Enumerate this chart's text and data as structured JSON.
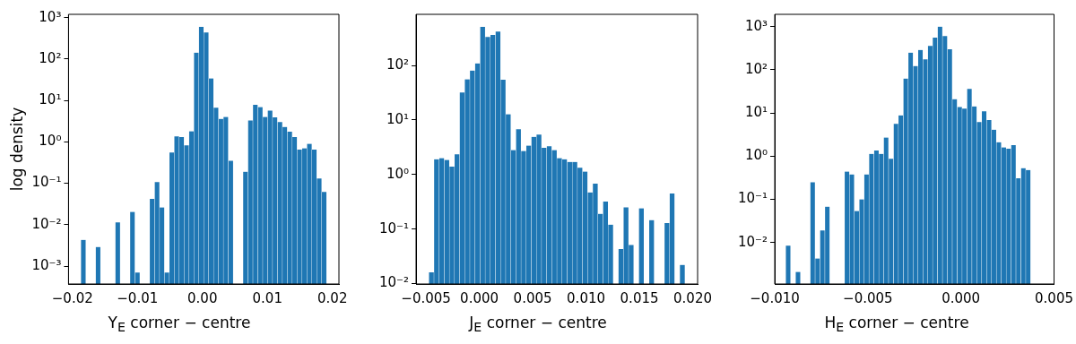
{
  "chart_data": [
    {
      "type": "histogram",
      "log": true,
      "color": "#1f77b4",
      "xlabel": "Y$_{E}$ corner − centre",
      "ylabel": "log density",
      "bins": [
        -0.0187,
        -0.01794,
        -0.01719,
        -0.01643,
        -0.01568,
        -0.01492,
        -0.01416,
        -0.01341,
        -0.01265,
        -0.0119,
        -0.01114,
        -0.01038,
        -0.00963,
        -0.00887,
        -0.00812,
        -0.00736,
        -0.0066,
        -0.00585,
        -0.00509,
        -0.00434,
        -0.00358,
        -0.00282,
        -0.00207,
        -0.00131,
        -0.00056,
        0.0002,
        0.00096,
        0.00171,
        0.00247,
        0.00322,
        0.00398,
        0.00474,
        0.00549,
        0.00625,
        0.007,
        0.00776,
        0.00852,
        0.00927,
        0.01003,
        0.01078,
        0.01154,
        0.0123,
        0.01305,
        0.01381,
        0.01456,
        0.01532,
        0.01608,
        0.01683,
        0.01759,
        0.01834,
        0.0191
      ],
      "values": [
        0.0043,
        null,
        null,
        0.0029,
        null,
        null,
        null,
        0.0113,
        null,
        null,
        0.0204,
        0.0007,
        null,
        null,
        0.042,
        0.107,
        0.026,
        0.0007,
        0.55,
        1.35,
        1.3,
        0.82,
        1.8,
        143,
        600,
        440,
        34,
        6.7,
        3.6,
        4.0,
        0.35,
        null,
        null,
        0.19,
        3.3,
        7.8,
        6.9,
        4.0,
        5.7,
        3.9,
        3.0,
        2.3,
        1.75,
        1.3,
        0.65,
        0.7,
        0.9,
        0.65,
        0.13,
        0.062
      ],
      "xlim": [
        -0.0206,
        0.021
      ],
      "ylim": [
        0.00037,
        1200
      ],
      "xticks": [
        {
          "value": -0.02,
          "label": "−0.02"
        },
        {
          "value": -0.01,
          "label": "−0.01"
        },
        {
          "value": 0,
          "label": "0.00"
        },
        {
          "value": 0.01,
          "label": "0.01"
        },
        {
          "value": 0.02,
          "label": "0.02"
        }
      ],
      "yticks": [
        {
          "value": 0.001,
          "label": "10⁻³"
        },
        {
          "value": 0.01,
          "label": "10⁻²"
        },
        {
          "value": 0.1,
          "label": "10⁻¹"
        },
        {
          "value": 1,
          "label": "10⁰"
        },
        {
          "value": 10,
          "label": "10¹"
        },
        {
          "value": 100,
          "label": "10²"
        },
        {
          "value": 1000,
          "label": "10³"
        }
      ]
    },
    {
      "type": "histogram",
      "log": true,
      "color": "#1f77b4",
      "xlabel": "J$_{E}$ corner − centre",
      "bins": [
        -0.00473,
        -0.00425,
        -0.00377,
        -0.00329,
        -0.00281,
        -0.00233,
        -0.00185,
        -0.00137,
        -0.00089,
        -0.00041,
        7e-05,
        0.00055,
        0.00103,
        0.00151,
        0.00199,
        0.00247,
        0.00295,
        0.00343,
        0.00391,
        0.00439,
        0.00487,
        0.00535,
        0.00583,
        0.00631,
        0.00679,
        0.00727,
        0.00775,
        0.00823,
        0.00871,
        0.00919,
        0.00967,
        0.01015,
        0.01063,
        0.01111,
        0.01159,
        0.01207,
        0.01255,
        0.01303,
        0.01351,
        0.01399,
        0.01447,
        0.01495,
        0.01543,
        0.01591,
        0.01639,
        0.01687,
        0.01735,
        0.01783,
        0.01831,
        0.01879,
        0.01927
      ],
      "values": [
        0.016,
        1.9,
        2.0,
        1.85,
        1.4,
        2.35,
        32,
        56,
        81,
        109,
        510,
        335,
        365,
        420,
        55,
        12.8,
        2.8,
        6.8,
        2.7,
        3.4,
        4.9,
        5.4,
        3.1,
        3.3,
        2.8,
        2.0,
        1.9,
        1.7,
        1.7,
        1.33,
        1.13,
        0.47,
        0.68,
        0.19,
        0.32,
        0.12,
        null,
        0.043,
        0.25,
        0.051,
        null,
        0.24,
        null,
        0.146,
        null,
        null,
        0.128,
        0.45,
        null,
        0.022
      ],
      "xlim": [
        -0.00593,
        0.02046
      ],
      "ylim": [
        0.0098,
        870
      ],
      "xticks": [
        {
          "value": -0.005,
          "label": "−0.005"
        },
        {
          "value": 0,
          "label": "0.000"
        },
        {
          "value": 0.005,
          "label": "0.005"
        },
        {
          "value": 0.01,
          "label": "0.010"
        },
        {
          "value": 0.015,
          "label": "0.015"
        },
        {
          "value": 0.02,
          "label": "0.020"
        }
      ],
      "yticks": [
        {
          "value": 0.01,
          "label": "10⁻²"
        },
        {
          "value": 0.1,
          "label": "10⁻¹"
        },
        {
          "value": 1,
          "label": "10⁰"
        },
        {
          "value": 10,
          "label": "10¹"
        },
        {
          "value": 100,
          "label": "10²"
        }
      ]
    },
    {
      "type": "histogram",
      "log": true,
      "color": "#1f77b4",
      "xlabel": "H$_{E}$ corner − centre",
      "bins": [
        -0.00941,
        -0.00915,
        -0.00888,
        -0.00862,
        -0.00836,
        -0.0081,
        -0.00783,
        -0.00757,
        -0.00731,
        -0.00704,
        -0.00678,
        -0.00652,
        -0.00625,
        -0.00599,
        -0.00573,
        -0.00546,
        -0.0052,
        -0.00494,
        -0.00467,
        -0.00441,
        -0.00415,
        -0.00389,
        -0.00362,
        -0.00336,
        -0.0031,
        -0.00283,
        -0.00257,
        -0.00231,
        -0.00204,
        -0.00178,
        -0.00152,
        -0.00126,
        -0.00099,
        -0.00073,
        -0.00047,
        -0.0002,
        6e-05,
        0.00032,
        0.00059,
        0.00085,
        0.00111,
        0.00138,
        0.00164,
        0.0019,
        0.00217,
        0.00243,
        0.00269,
        0.00295,
        0.00322,
        0.00348,
        0.00374
      ],
      "values": [
        0.0085,
        null,
        0.0021,
        null,
        null,
        0.25,
        0.0043,
        0.019,
        0.068,
        null,
        null,
        null,
        0.44,
        0.38,
        0.054,
        0.1,
        0.38,
        1.13,
        1.35,
        1.13,
        2.7,
        0.87,
        5.6,
        8.8,
        63,
        250,
        123,
        288,
        175,
        360,
        555,
        1000,
        605,
        300,
        21,
        13.8,
        12.7,
        36,
        14.2,
        6.2,
        10.9,
        6.9,
        4.1,
        2.1,
        1.6,
        1.5,
        1.8,
        0.31,
        0.53,
        0.48
      ],
      "xlim": [
        -0.01,
        0.005
      ],
      "ylim": [
        0.0011,
        1930
      ],
      "xticks": [
        {
          "value": -0.01,
          "label": "−0.010"
        },
        {
          "value": -0.005,
          "label": "−0.005"
        },
        {
          "value": 0,
          "label": "0.000"
        },
        {
          "value": 0.005,
          "label": "0.005"
        }
      ],
      "yticks": [
        {
          "value": 0.01,
          "label": "10⁻²"
        },
        {
          "value": 0.1,
          "label": "10⁻¹"
        },
        {
          "value": 1,
          "label": "10⁰"
        },
        {
          "value": 10,
          "label": "10¹"
        },
        {
          "value": 100,
          "label": "10²"
        },
        {
          "value": 1000,
          "label": "10³"
        }
      ]
    }
  ]
}
